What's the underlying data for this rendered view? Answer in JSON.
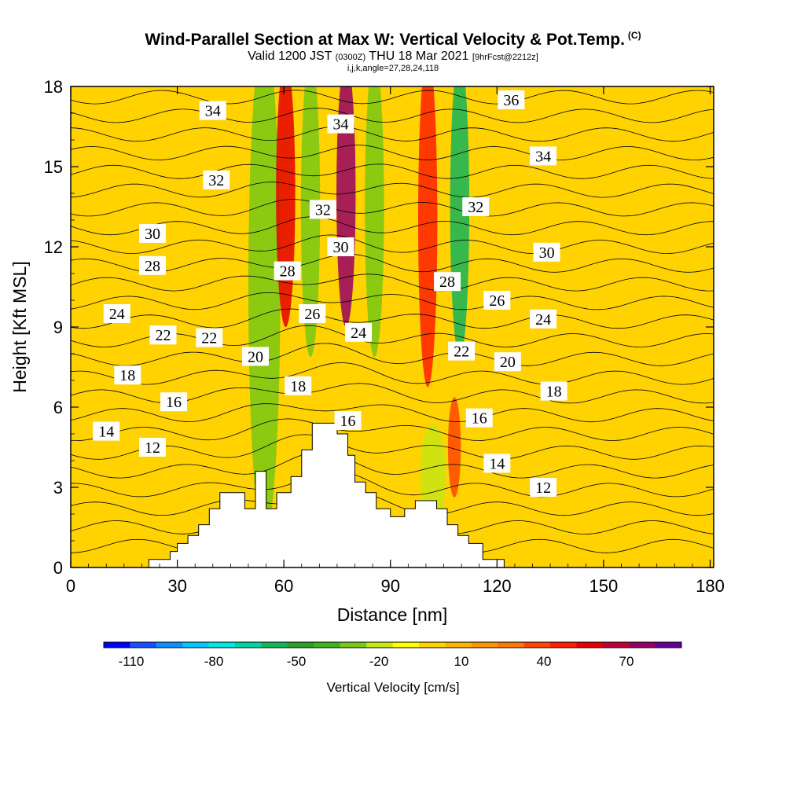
{
  "title": {
    "main": "Wind-Parallel Section at Max W: Vertical Velocity & Pot.Temp.",
    "copyright": "(C)",
    "valid_prefix": "Valid 1200 JST",
    "valid_utc": "(0300Z)",
    "valid_date": "THU 18 Mar 2021",
    "forecast": "[9hrFcst@2212z]",
    "indices": "i,j,k,angle=27,28,24,118"
  },
  "chart_data": {
    "type": "heatmap",
    "xlabel": "Distance [nm]",
    "ylabel": "Height [Kft MSL]",
    "xlim": [
      0,
      181
    ],
    "ylim": [
      0,
      18
    ],
    "x_ticks": [
      0,
      30,
      60,
      90,
      120,
      150,
      180
    ],
    "y_ticks": [
      0,
      3,
      6,
      9,
      12,
      15,
      18
    ],
    "colorbar": {
      "label": "Vertical Velocity [cm/s]",
      "min": -120,
      "max": 90,
      "step": 10,
      "tick_labels": [
        -110,
        -80,
        -50,
        -20,
        10,
        40,
        70
      ],
      "colors": [
        "#0000ff",
        "#1550ff",
        "#0a90ff",
        "#00c8ff",
        "#00e6e6",
        "#00d2a0",
        "#14b45a",
        "#28a028",
        "#3cb41e",
        "#78c814",
        "#c8e614",
        "#ffff00",
        "#ffd200",
        "#ffb400",
        "#ff9600",
        "#ff7800",
        "#ff4600",
        "#ff1e00",
        "#e60000",
        "#be0032",
        "#960064",
        "#640096"
      ]
    },
    "background_value": 5,
    "velocity_bands": [
      {
        "x": 52,
        "w": 5,
        "y0": 3,
        "y1": 18,
        "value": -30
      },
      {
        "x": 59,
        "w": 3,
        "y0": 10,
        "y1": 18,
        "value": 60
      },
      {
        "x": 66,
        "w": 3,
        "y0": 9,
        "y1": 18,
        "value": -30
      },
      {
        "x": 76,
        "w": 3,
        "y0": 10,
        "y1": 18,
        "value": 80
      },
      {
        "x": 84,
        "w": 3,
        "y0": 9,
        "y1": 18,
        "value": -30
      },
      {
        "x": 99,
        "w": 3,
        "y0": 8,
        "y1": 18,
        "value": 50
      },
      {
        "x": 108,
        "w": 3,
        "y0": 9,
        "y1": 18,
        "value": -60
      },
      {
        "x": 107,
        "w": 2,
        "y0": 3,
        "y1": 6,
        "value": 40
      },
      {
        "x": 100,
        "w": 4,
        "y0": 2,
        "y1": 5,
        "value": -20
      }
    ],
    "terrain": [
      [
        0,
        0
      ],
      [
        22,
        0
      ],
      [
        22,
        0.3
      ],
      [
        28,
        0.3
      ],
      [
        28,
        0.6
      ],
      [
        30,
        0.6
      ],
      [
        30,
        0.9
      ],
      [
        33,
        0.9
      ],
      [
        33,
        1.2
      ],
      [
        36,
        1.2
      ],
      [
        36,
        1.6
      ],
      [
        39,
        1.6
      ],
      [
        39,
        2.2
      ],
      [
        42,
        2.2
      ],
      [
        42,
        2.8
      ],
      [
        49,
        2.8
      ],
      [
        49,
        2.2
      ],
      [
        52,
        2.2
      ],
      [
        52,
        3.6
      ],
      [
        55,
        3.6
      ],
      [
        55,
        2.2
      ],
      [
        58,
        2.2
      ],
      [
        58,
        2.8
      ],
      [
        62,
        2.8
      ],
      [
        62,
        3.4
      ],
      [
        65,
        3.4
      ],
      [
        65,
        4.4
      ],
      [
        68,
        4.4
      ],
      [
        68,
        5.4
      ],
      [
        75,
        5.4
      ],
      [
        75,
        5.0
      ],
      [
        78,
        5.0
      ],
      [
        78,
        4.2
      ],
      [
        80,
        4.2
      ],
      [
        80,
        3.2
      ],
      [
        83,
        3.2
      ],
      [
        83,
        2.8
      ],
      [
        86,
        2.8
      ],
      [
        86,
        2.2
      ],
      [
        90,
        2.2
      ],
      [
        90,
        1.9
      ],
      [
        94,
        1.9
      ],
      [
        94,
        2.2
      ],
      [
        97,
        2.2
      ],
      [
        97,
        2.5
      ],
      [
        103,
        2.5
      ],
      [
        103,
        2.2
      ],
      [
        106,
        2.2
      ],
      [
        106,
        1.6
      ],
      [
        109,
        1.6
      ],
      [
        109,
        1.2
      ],
      [
        112,
        1.2
      ],
      [
        112,
        0.9
      ],
      [
        116,
        0.9
      ],
      [
        116,
        0.3
      ],
      [
        122,
        0.3
      ],
      [
        122,
        0
      ],
      [
        181,
        0
      ]
    ],
    "theta_contours": {
      "levels_from": 11,
      "levels_to": 37,
      "level_step": 1,
      "base_height": 0.8,
      "spacing_kft": 0.7,
      "labels": [
        {
          "x": 40,
          "y": 17.1,
          "text": "34"
        },
        {
          "x": 76,
          "y": 16.6,
          "text": "34"
        },
        {
          "x": 124,
          "y": 17.5,
          "text": "36"
        },
        {
          "x": 41,
          "y": 14.5,
          "text": "32"
        },
        {
          "x": 71,
          "y": 13.4,
          "text": "32"
        },
        {
          "x": 114,
          "y": 13.5,
          "text": "32"
        },
        {
          "x": 133,
          "y": 15.4,
          "text": "34"
        },
        {
          "x": 23,
          "y": 12.5,
          "text": "30"
        },
        {
          "x": 76,
          "y": 12.0,
          "text": "30"
        },
        {
          "x": 134,
          "y": 11.8,
          "text": "30"
        },
        {
          "x": 23,
          "y": 11.3,
          "text": "28"
        },
        {
          "x": 61,
          "y": 11.1,
          "text": "28"
        },
        {
          "x": 106,
          "y": 10.7,
          "text": "28"
        },
        {
          "x": 120,
          "y": 10.0,
          "text": "26"
        },
        {
          "x": 68,
          "y": 9.5,
          "text": "26"
        },
        {
          "x": 13,
          "y": 9.5,
          "text": "24"
        },
        {
          "x": 81,
          "y": 8.8,
          "text": "24"
        },
        {
          "x": 133,
          "y": 9.3,
          "text": "24"
        },
        {
          "x": 26,
          "y": 8.7,
          "text": "22"
        },
        {
          "x": 39,
          "y": 8.6,
          "text": "22"
        },
        {
          "x": 110,
          "y": 8.1,
          "text": "22"
        },
        {
          "x": 52,
          "y": 7.9,
          "text": "20"
        },
        {
          "x": 123,
          "y": 7.7,
          "text": "20"
        },
        {
          "x": 16,
          "y": 7.2,
          "text": "18"
        },
        {
          "x": 64,
          "y": 6.8,
          "text": "18"
        },
        {
          "x": 136,
          "y": 6.6,
          "text": "18"
        },
        {
          "x": 29,
          "y": 6.2,
          "text": "16"
        },
        {
          "x": 78,
          "y": 5.5,
          "text": "16"
        },
        {
          "x": 115,
          "y": 5.6,
          "text": "16"
        },
        {
          "x": 10,
          "y": 5.1,
          "text": "14"
        },
        {
          "x": 120,
          "y": 3.9,
          "text": "14"
        },
        {
          "x": 23,
          "y": 4.5,
          "text": "12"
        },
        {
          "x": 133,
          "y": 3.0,
          "text": "12"
        }
      ]
    }
  }
}
